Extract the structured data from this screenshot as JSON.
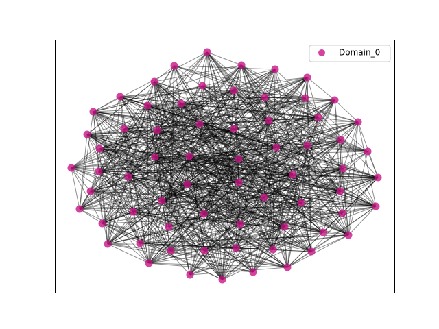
{
  "legend": {
    "label": "Domain_0"
  }
}
